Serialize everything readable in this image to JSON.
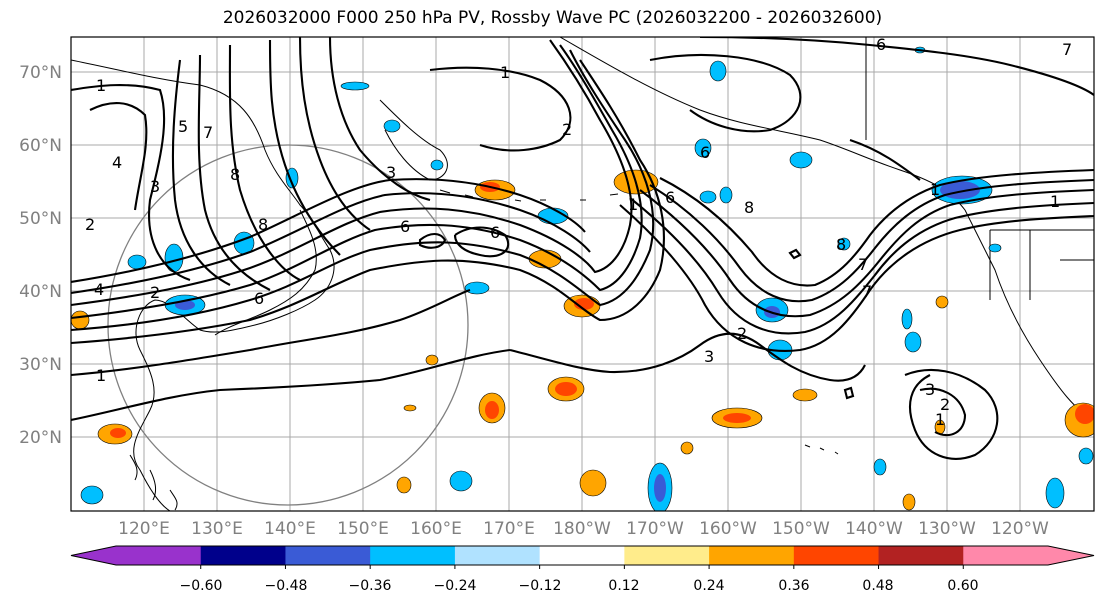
{
  "title": "2026032000 F000 250 hPa PV, Rossby Wave PC (2026032200 - 2026032600)",
  "lat_labels": [
    "70°N",
    "60°N",
    "50°N",
    "40°N",
    "30°N",
    "20°N"
  ],
  "lon_labels": [
    "120°E",
    "130°E",
    "140°E",
    "150°E",
    "160°E",
    "170°E",
    "180°W",
    "170°W",
    "160°W",
    "150°W",
    "140°W",
    "130°W",
    "120°W"
  ],
  "colorbar": {
    "colors": [
      "#9932cc",
      "#00008b",
      "#3a5bd6",
      "#00bfff",
      "#b0e2ff",
      "#ffffff",
      "#ffec8b",
      "#ffa500",
      "#ff4500",
      "#b22222",
      "#ff88aa"
    ],
    "tick_labels": [
      "−0.60",
      "−0.48",
      "−0.36",
      "−0.24",
      "−0.12",
      "0.12",
      "0.24",
      "0.36",
      "0.48",
      "0.60"
    ]
  },
  "contour_labels": [
    "1",
    "1",
    "5",
    "7",
    "4",
    "3",
    "2",
    "8",
    "8",
    "3",
    "6",
    "6",
    "6",
    "4",
    "6",
    "1",
    "1",
    "2",
    "3",
    "8",
    "8",
    "6",
    "7",
    "2",
    "3",
    "2",
    "1",
    "1",
    "2",
    "1",
    "6",
    "7",
    "7"
  ],
  "colors": {
    "land_border": "#000000",
    "grid": "#999999",
    "circle": "#808080"
  }
}
